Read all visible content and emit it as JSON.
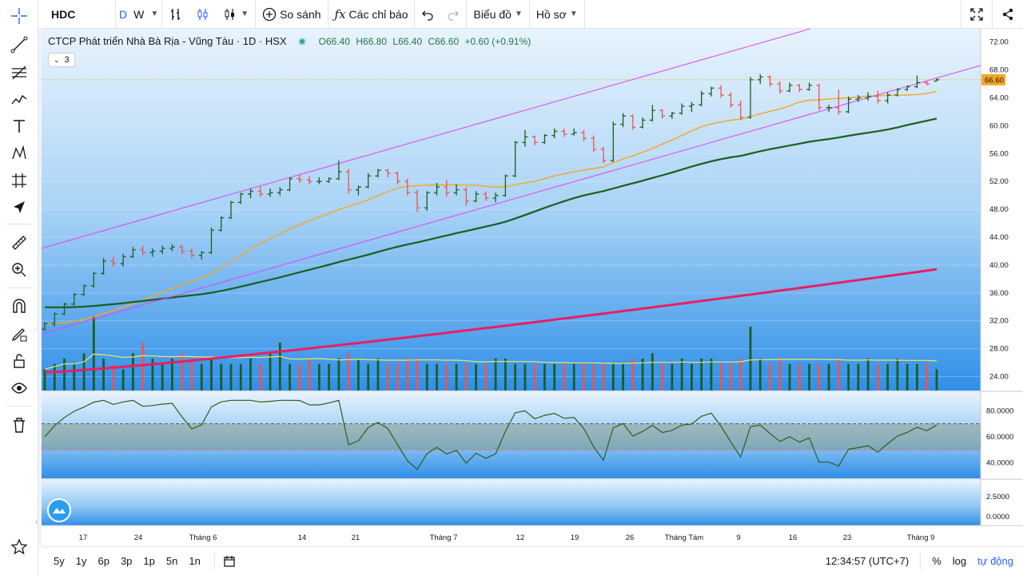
{
  "toolbar": {
    "symbol": "HDC",
    "interval_d": "D",
    "interval_w": "W",
    "compare": "So sánh",
    "indicators": "Các chỉ báo",
    "chart_menu": "Biểu đồ",
    "profile_menu": "Hồ sơ"
  },
  "legend": {
    "title": "CTCP Phát triển Nhà Bà Rịa - Vũng Tàu · 1D · HSX",
    "open": "O66.40",
    "high": "H66.80",
    "low": "L66.40",
    "close": "C66.60",
    "change": "+0.60 (+0.91%)",
    "indicator_count": "3"
  },
  "price_axis": {
    "labels": [
      "72.00",
      "68.00",
      "64.00",
      "60.00",
      "56.00",
      "52.00",
      "48.00",
      "44.00",
      "40.00",
      "36.00",
      "32.00",
      "28.00",
      "24.00"
    ],
    "current_price": "66.60"
  },
  "rsi_axis": {
    "labels": [
      "80.0000",
      "60.0000",
      "40.0000"
    ]
  },
  "lower_axis": {
    "labels": [
      "2.5000",
      "0.0000"
    ]
  },
  "time_axis": {
    "labels": [
      "17",
      "24",
      "Tháng 6",
      "14",
      "21",
      "Tháng 7",
      "12",
      "19",
      "26",
      "Tháng Tám",
      "9",
      "16",
      "23",
      "Tháng 9"
    ]
  },
  "bottom": {
    "ranges": [
      "5y",
      "1y",
      "6p",
      "3p",
      "1p",
      "5n",
      "1n"
    ],
    "clock": "12:34:57 (UTC+7)",
    "percent": "%",
    "log": "log",
    "auto": "tự động"
  },
  "colors": {
    "up": "#1b5e20",
    "down": "#ef5350",
    "ma_short": "#f5a623",
    "ma_mid": "#1b5e20",
    "ma_long": "#e91e63",
    "channel": "#e040fb",
    "accent": "#2962ff"
  },
  "chart_data": {
    "type": "candlestick",
    "ylim": [
      22,
      73
    ],
    "bars": [
      [
        30.8,
        31.8,
        30.6,
        31.6
      ],
      [
        31.6,
        33.2,
        31.2,
        33.0
      ],
      [
        33.0,
        34.6,
        32.8,
        34.4
      ],
      [
        34.4,
        36.0,
        34.2,
        35.8
      ],
      [
        35.8,
        37.2,
        35.6,
        37.0
      ],
      [
        37.0,
        39.0,
        36.8,
        38.8
      ],
      [
        38.8,
        41.0,
        38.6,
        40.6
      ],
      [
        40.6,
        41.2,
        39.8,
        40.2
      ],
      [
        40.2,
        41.6,
        39.8,
        41.2
      ],
      [
        41.2,
        42.6,
        41.0,
        42.2
      ],
      [
        42.2,
        42.8,
        41.4,
        41.8
      ],
      [
        41.8,
        42.4,
        41.2,
        42.0
      ],
      [
        42.0,
        42.8,
        41.6,
        42.4
      ],
      [
        42.4,
        43.0,
        42.0,
        42.6
      ],
      [
        42.6,
        42.9,
        41.6,
        42.0
      ],
      [
        42.0,
        42.4,
        41.0,
        41.4
      ],
      [
        41.4,
        42.0,
        40.8,
        41.8
      ],
      [
        41.8,
        45.4,
        41.6,
        45.0
      ],
      [
        45.0,
        47.0,
        44.8,
        46.8
      ],
      [
        46.8,
        49.2,
        46.6,
        49.0
      ],
      [
        49.0,
        50.4,
        48.8,
        50.2
      ],
      [
        50.2,
        51.0,
        49.6,
        50.6
      ],
      [
        50.6,
        51.4,
        49.8,
        50.2
      ],
      [
        50.2,
        51.0,
        49.8,
        50.4
      ],
      [
        50.4,
        51.2,
        50.0,
        50.8
      ],
      [
        50.8,
        52.6,
        50.6,
        52.4
      ],
      [
        52.4,
        53.0,
        51.8,
        52.2
      ],
      [
        52.2,
        52.8,
        51.6,
        52.0
      ],
      [
        52.0,
        52.6,
        51.6,
        52.0
      ],
      [
        52.0,
        52.6,
        51.8,
        52.4
      ],
      [
        52.4,
        55.0,
        52.2,
        53.4
      ],
      [
        53.4,
        53.8,
        50.2,
        50.8
      ],
      [
        50.8,
        51.4,
        50.0,
        51.2
      ],
      [
        51.2,
        53.2,
        51.0,
        52.8
      ],
      [
        52.8,
        53.8,
        52.6,
        53.6
      ],
      [
        53.6,
        53.8,
        52.6,
        53.2
      ],
      [
        53.2,
        53.4,
        51.6,
        52.0
      ],
      [
        52.0,
        52.4,
        50.0,
        50.4
      ],
      [
        50.4,
        50.8,
        47.6,
        48.2
      ],
      [
        48.2,
        50.6,
        47.8,
        50.4
      ],
      [
        50.4,
        51.8,
        50.0,
        51.2
      ],
      [
        51.2,
        52.2,
        49.8,
        50.4
      ],
      [
        50.4,
        51.6,
        50.0,
        50.8
      ],
      [
        50.8,
        51.2,
        48.6,
        49.2
      ],
      [
        49.2,
        50.6,
        49.0,
        50.2
      ],
      [
        50.2,
        50.6,
        49.2,
        49.6
      ],
      [
        49.6,
        50.4,
        49.0,
        50.0
      ],
      [
        50.0,
        53.0,
        49.8,
        52.8
      ],
      [
        52.8,
        57.8,
        52.6,
        57.6
      ],
      [
        57.6,
        59.4,
        57.0,
        58.4
      ],
      [
        58.4,
        58.6,
        57.2,
        57.6
      ],
      [
        57.6,
        58.8,
        57.4,
        58.6
      ],
      [
        58.6,
        59.6,
        58.2,
        59.2
      ],
      [
        59.2,
        59.6,
        58.4,
        58.8
      ],
      [
        58.8,
        59.6,
        58.6,
        59.0
      ],
      [
        59.0,
        59.4,
        57.8,
        58.2
      ],
      [
        58.2,
        58.6,
        56.2,
        56.6
      ],
      [
        56.6,
        57.0,
        54.6,
        55.0
      ],
      [
        55.0,
        60.6,
        54.8,
        60.2
      ],
      [
        60.2,
        61.8,
        59.8,
        61.4
      ],
      [
        61.4,
        61.6,
        59.4,
        59.8
      ],
      [
        59.8,
        61.2,
        59.6,
        60.8
      ],
      [
        60.8,
        63.0,
        60.6,
        62.2
      ],
      [
        62.2,
        62.4,
        61.0,
        61.4
      ],
      [
        61.4,
        62.0,
        61.0,
        61.8
      ],
      [
        61.8,
        63.2,
        61.6,
        62.8
      ],
      [
        62.8,
        63.4,
        62.0,
        63.0
      ],
      [
        63.0,
        65.0,
        62.8,
        64.6
      ],
      [
        64.6,
        65.6,
        64.2,
        65.4
      ],
      [
        65.4,
        65.8,
        64.0,
        64.4
      ],
      [
        64.4,
        64.8,
        62.6,
        63.0
      ],
      [
        63.0,
        63.6,
        60.8,
        61.2
      ],
      [
        61.2,
        67.0,
        61.0,
        66.6
      ],
      [
        66.6,
        67.4,
        66.0,
        67.0
      ],
      [
        67.0,
        67.2,
        65.6,
        66.0
      ],
      [
        66.0,
        66.4,
        64.6,
        65.0
      ],
      [
        65.0,
        66.2,
        64.8,
        65.8
      ],
      [
        65.8,
        66.0,
        64.8,
        65.2
      ],
      [
        65.2,
        66.2,
        65.0,
        65.8
      ],
      [
        65.8,
        66.0,
        62.2,
        62.6
      ],
      [
        62.6,
        63.0,
        62.0,
        62.6
      ],
      [
        62.6,
        65.2,
        61.6,
        62.0
      ],
      [
        62.0,
        64.2,
        61.8,
        63.8
      ],
      [
        63.8,
        64.4,
        63.4,
        64.0
      ],
      [
        64.0,
        64.8,
        63.6,
        64.2
      ],
      [
        64.2,
        65.0,
        63.2,
        63.6
      ],
      [
        63.6,
        64.8,
        63.2,
        64.4
      ],
      [
        64.4,
        65.4,
        64.2,
        65.2
      ],
      [
        65.2,
        65.8,
        65.0,
        65.6
      ],
      [
        65.6,
        67.2,
        65.4,
        66.2
      ],
      [
        66.2,
        66.4,
        65.8,
        66.0
      ],
      [
        66.4,
        66.8,
        66.4,
        66.6
      ]
    ],
    "volume": [
      4,
      5,
      6,
      5,
      7,
      14,
      6,
      5,
      4,
      7,
      9,
      6,
      5,
      6,
      7,
      6,
      5,
      6,
      5,
      5,
      5,
      6,
      5,
      7,
      9,
      5,
      5,
      6,
      5,
      5,
      6,
      7,
      6,
      5,
      6,
      5,
      5,
      6,
      6,
      5,
      5,
      5,
      5,
      5,
      5,
      5,
      6,
      6,
      5,
      5,
      5,
      5,
      5,
      5,
      5,
      5,
      5,
      5,
      5,
      5,
      6,
      6,
      7,
      5,
      5,
      6,
      5,
      6,
      6,
      5,
      5,
      6,
      12,
      6,
      5,
      6,
      5,
      5,
      5,
      5,
      5,
      6,
      5,
      5,
      6,
      5,
      5,
      6,
      5,
      5,
      5,
      4
    ]
  }
}
